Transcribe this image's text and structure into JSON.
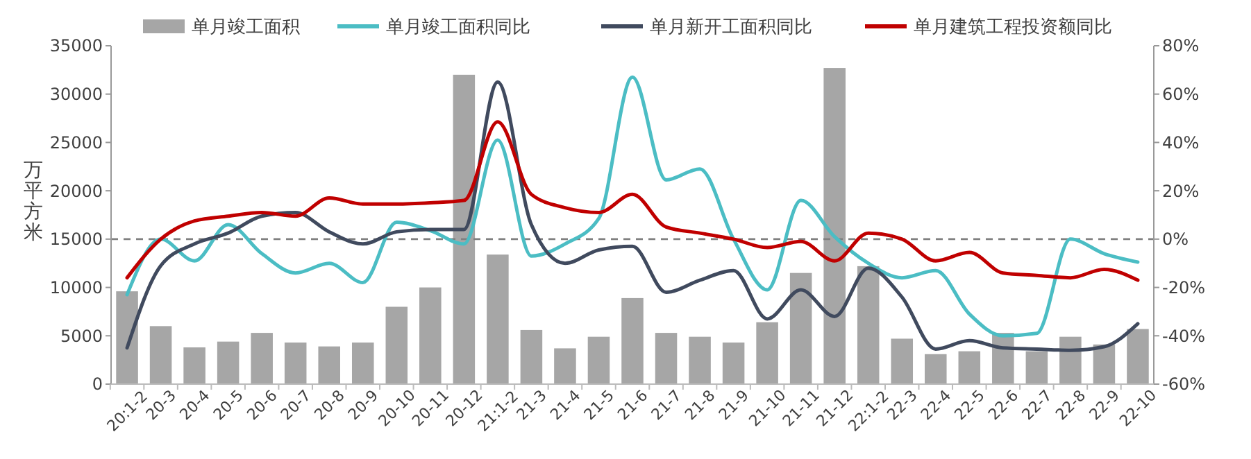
{
  "chart_data": {
    "type": "bar",
    "categories": [
      "20:1-2",
      "20-3",
      "20-4",
      "20-5",
      "20-6",
      "20-7",
      "20-8",
      "20-9",
      "20-10",
      "20-11",
      "20-12",
      "21:1-2",
      "21-3",
      "21-4",
      "21-5",
      "21-6",
      "21-7",
      "21-8",
      "21-9",
      "21-10",
      "21-11",
      "21-12",
      "22:1-2",
      "22-3",
      "22-4",
      "22-5",
      "22-6",
      "22-7",
      "22-8",
      "22-9",
      "22-10"
    ],
    "ylabel": "万平方米",
    "ylim": [
      0,
      35000
    ],
    "yticks": [
      0,
      5000,
      10000,
      15000,
      20000,
      25000,
      30000,
      35000
    ],
    "y2lim": [
      -60,
      80
    ],
    "y2ticks": [
      {
        "value": -60,
        "label": "-60%"
      },
      {
        "value": -40,
        "label": "-40%"
      },
      {
        "value": -20,
        "label": "-20%"
      },
      {
        "value": 0,
        "label": "0%"
      },
      {
        "value": 20,
        "label": "20%"
      },
      {
        "value": 40,
        "label": "40%"
      },
      {
        "value": 60,
        "label": "60%"
      },
      {
        "value": 80,
        "label": "80%"
      }
    ],
    "legend": "top",
    "grid": false,
    "ref_lines": [
      {
        "axis": "y2",
        "value": 0,
        "color": "#808080",
        "line_style": "dashed"
      }
    ],
    "series": [
      {
        "name": "单月竣工面积",
        "color": "#a6a6a6",
        "values": [
          9600,
          6000,
          3800,
          4400,
          5300,
          4300,
          3900,
          4300,
          8000,
          10000,
          32000,
          13400,
          5600,
          3700,
          4900,
          8900,
          5300,
          4900,
          4300,
          6400,
          11500,
          32700,
          12200,
          4700,
          3100,
          3400,
          5300,
          3400,
          4900,
          4100,
          5700
        ]
      },
      {
        "name": "单月竣工面积同比",
        "type": "line",
        "axis": "y2",
        "color": "#4bbdc4",
        "values": [
          -23,
          0,
          -9,
          6,
          -6,
          -14,
          -10,
          -18,
          7,
          3.5,
          -2,
          41,
          -7,
          -2,
          8.5,
          67,
          24.5,
          29,
          0,
          -21,
          16,
          1,
          -10,
          -16,
          -13,
          -31,
          -40,
          -39,
          0,
          -6,
          -9.5
        ]
      },
      {
        "name": "单月新开工面积同比",
        "type": "line",
        "axis": "y2",
        "color": "#404a5e",
        "values": [
          -45,
          -11,
          -2,
          2.5,
          9.5,
          11,
          3,
          -2,
          3,
          4,
          4,
          65,
          6,
          -10,
          -4.5,
          -3,
          -22,
          -17,
          -13,
          -33,
          -21,
          -32,
          -12,
          -24,
          -45.5,
          -42,
          -45,
          -45.5,
          -46,
          -44.5,
          -35
        ]
      },
      {
        "name": "单月建筑工程投资额同比",
        "type": "line",
        "axis": "y2",
        "color": "#c00000",
        "values": [
          -16,
          0,
          7.5,
          9.5,
          11,
          9.5,
          17,
          14.5,
          14.5,
          15,
          16,
          48.5,
          18.5,
          13,
          11,
          18.5,
          5,
          2.5,
          0,
          -3.5,
          -1,
          -9,
          2.5,
          0,
          -9,
          -5.5,
          -14,
          -15,
          -16,
          -12.5,
          -17
        ]
      }
    ]
  }
}
